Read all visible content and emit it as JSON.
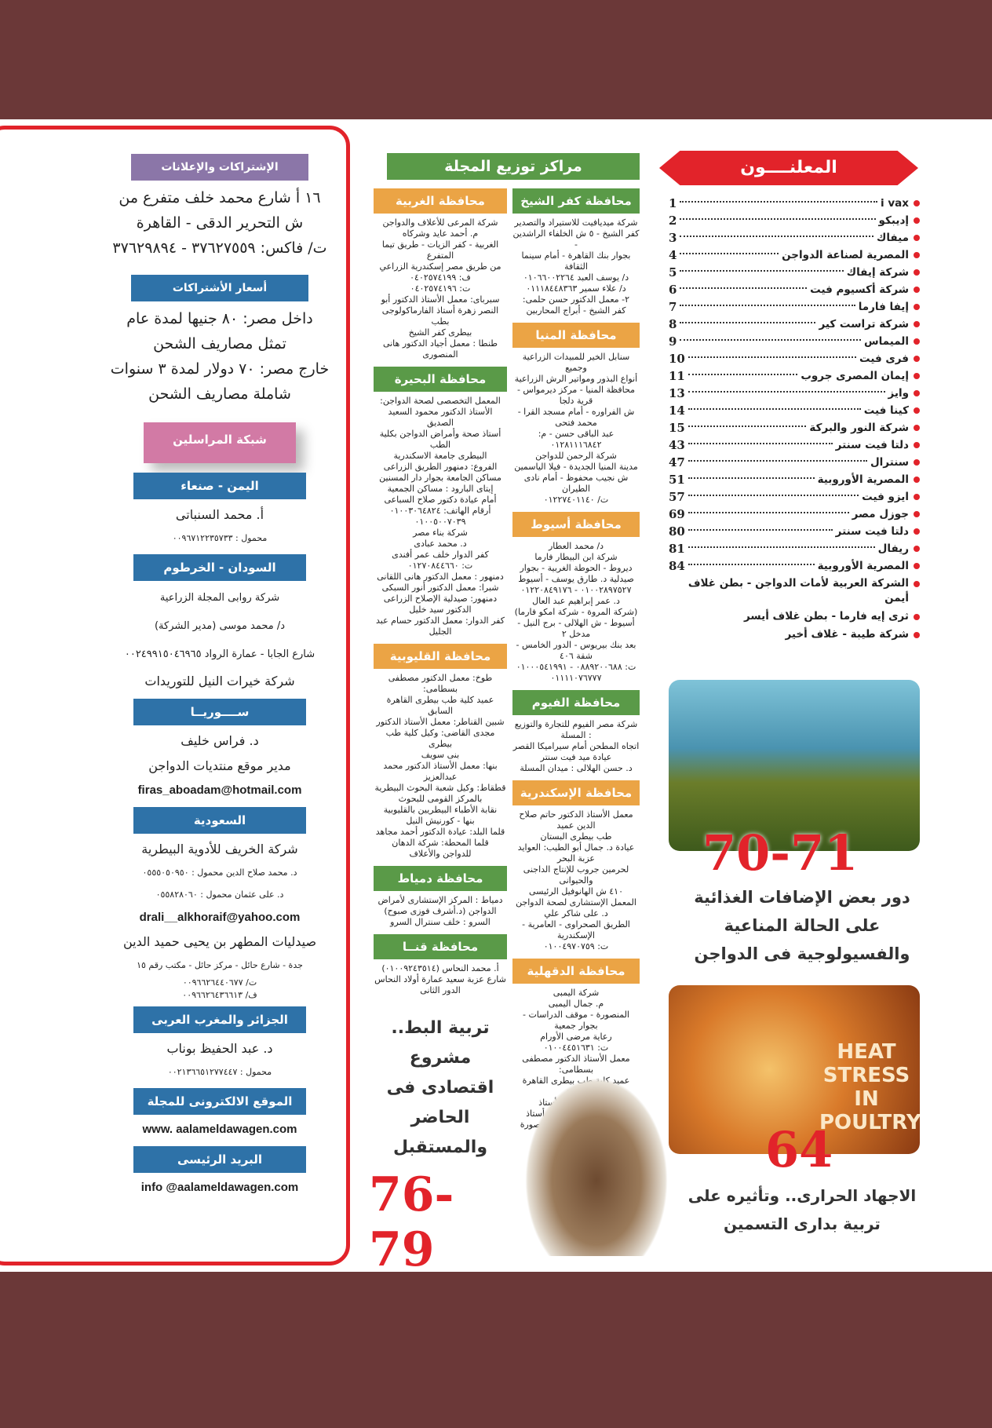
{
  "advertisers": {
    "title": "المعلنــــون",
    "items": [
      {
        "name": "i vax",
        "page": "1"
      },
      {
        "name": "إديبكو",
        "page": "2"
      },
      {
        "name": "ميفاك",
        "page": "3"
      },
      {
        "name": "المصرية لصناعة الدواجن",
        "page": "4"
      },
      {
        "name": "شركة إيفاك",
        "page": "5"
      },
      {
        "name": "شركة أكسيوم فيت",
        "page": "6"
      },
      {
        "name": "إيفا فارما",
        "page": "7"
      },
      {
        "name": "شركة تراست كير",
        "page": "8"
      },
      {
        "name": "الميماس",
        "page": "9"
      },
      {
        "name": "فرى فيت",
        "page": "10"
      },
      {
        "name": "إيمان المصرى جروب",
        "page": "11"
      },
      {
        "name": "وايز",
        "page": "13"
      },
      {
        "name": "كينا فيت",
        "page": "14"
      },
      {
        "name": "شركة النور والبركة",
        "page": "15"
      },
      {
        "name": "دلتا فيت سنتر",
        "page": "43"
      },
      {
        "name": "سنترال",
        "page": "47"
      },
      {
        "name": "المصرية الأوروبية",
        "page": "51"
      },
      {
        "name": "ايزو فيت",
        "page": "57"
      },
      {
        "name": "جوزل مصر",
        "page": "69"
      },
      {
        "name": "دلتا فيت سنتر",
        "page": "80"
      },
      {
        "name": "ريفال",
        "page": "81"
      },
      {
        "name": "المصرية الأوروبية",
        "page": "84"
      }
    ],
    "covers": [
      "الشركة العربية لأمات الدواجن - بطن غلاف أيمن",
      "ثرى إيه فارما - بطن غلاف أيسر",
      "شركة طيبة - غلاف أخير"
    ]
  },
  "features": [
    {
      "pages": "70-71",
      "title": "دور بعض الإضافات الغذائية على الحالة المناعية والفسيولوجية فى الدواجن"
    },
    {
      "pages": "64",
      "title": "الاجهاد الحرارى.. وتأثيره على تربية بدارى التسمين",
      "image_text": "HEAT STRESS IN POULTRY"
    },
    {
      "pages": "76-79",
      "title": "تربية البط.. مشروع اقتصادى فى الحاضر والمستقبل"
    }
  ],
  "distribution": {
    "title": "مراكز توزيع المجلة",
    "col_right": [
      {
        "name": "محافظة كفر الشيخ",
        "color": "green",
        "lines": [
          "شركة ميديافيت للاستيراد والتصدير",
          "كفر الشيخ - ٥ ش الخلفاء الراشدين -",
          "بجوار بنك القاهرة - أمام سينما الثقافة",
          "د/ يوسف العبد ٠١٠٦٦٠٠٢٢٦٤",
          "د/ علاء سمير ٠١١١٨٤٤٨٣٦٣",
          "٢- معمل الدكتور حسن حلمى:",
          "كفر الشيخ - أبراج المحاربين"
        ]
      },
      {
        "name": "محافظة المنيا",
        "color": "orange",
        "lines": [
          "سنابل الخير للمبيدات الزراعية وجميع",
          "أنواع البذور ومواتير الرش الزراعية",
          "محافظة المنيا - مركز ديرمواس - قرية دلجا",
          "ش الفراوره - أمام مسجد القرا - محمد فتحى",
          "عبد الباقى حسن - م: ٠١٢٨١١١٦٨٤٢",
          "شركة الرحمن للدواجن",
          "مدينة المنيا الجديدة - فيلا الياسمين",
          "ش نجيب محفوظ - أمام نادى الطيران",
          "ت/ ٠١٢٢٧٤٠١١٤٠"
        ]
      },
      {
        "name": "محافظة أسيوط",
        "color": "orange",
        "lines": [
          "د/ محمد العطار",
          "شركة ابن البيطار فارما",
          "ديروط - الحوطة الغربية - بجوار",
          "صيدلية د. طارق يوسف - أسيوط",
          "٠١٠٠٢٨٩٧٥٢٧ - ٠١٢٢٠٨٤٩١٧٦",
          "د. عمر إبراهيم عبد العال",
          "(شركة المروة - شركة امكو فارما)",
          "أسيوط - ش الهلالى - برج النيل - مدخل ٢",
          "بعد بنك بيريوس - الدور الخامس - شقة ٤٠٦",
          "ت: ٠٨٨٩٢٠٠٦٨٨ - ٠١٠٠٠٥٤١٩٩١",
          "٠١١١١٠٧٦٧٧٧"
        ]
      },
      {
        "name": "محافظة الفيوم",
        "color": "green",
        "lines": [
          "شركة مصر الفيوم للتجارة والتوزيع : المسلة",
          "اتجاه المطحن أمام سيراميكا القصر",
          "عيادة ميد فيت سنتر",
          "د. حسن الهلالى : ميدان المسلة"
        ]
      },
      {
        "name": "محافظة الإسكندرية",
        "color": "orange",
        "lines": [
          "معمل الأستاذ الدكتور حاتم صلاح الدين عميد",
          "طب بيطرى البستان",
          "عيادة د. جمال أبو الطيب: العوايد عزبة البحر",
          "لحرمين جروب للإنتاج الداجنى والحيوانى",
          "٤١٠ ش الهانوفيل الرئيسى",
          "المعمل الإستشارى لصحة الدواجن",
          "د. على شاكر علي",
          "الطريق الصحراوى - العامرية - الإسكندرية",
          "ت: ٠١٠٠٤٩٧٠٧٥٩"
        ]
      },
      {
        "name": "محافظة الدقهلية",
        "color": "orange",
        "lines": [
          "شركة اليمبى",
          "م. جمال اليمبى",
          "المنصورة - موقف الدراسات - بجوار جمعية",
          "رعاية مرضى الأورام",
          "ت: ٠١٠٠٤٤٥١٦٣١",
          "معمل الأستاذ الدكتور مصطفى بسطامى:",
          "عميد كلية طب بيطرى القاهرة السابق",
          "توريل : معمل الأستاذ",
          "الدكتور محمد يوسف : أستاذ",
          "أمراض الباطنة جامعة المنصورة"
        ]
      }
    ],
    "col_left": [
      {
        "name": "محافظة الغربية",
        "color": "orange",
        "lines": [
          "شركة المرعى للأعلاف والدواجن",
          "م. أحمد عايد وشركاه",
          "الغربية - كفر الزيات - طريق تيما المتفرع",
          "من طريق مصر إسكندرية الزراعي",
          "ف: ٠٤٠٢٥٧٤١٩٩",
          "ت: ٠٤٠٢٥٧٤١٩٦",
          "سبرباى: معمل الأستاذ الدكتور أبو",
          "النصر زهرة أستاذ الفارماكولوجى بطب",
          "بيطرى كفر الشيخ",
          "طنطا : معمل أجياد الدكتور هانى المنصورى"
        ]
      },
      {
        "name": "محافظة البحيرة",
        "color": "green",
        "lines": [
          "المعمل التخصصى لصحة الدواجن:",
          "الأستاذ الدكتور محمود السعيد الصديق",
          "أستاذ صحة وأمراض الدواجن بكلية الطب",
          "البيطرى جامعة الاسكندرية",
          "الفروع: دمنهور الطريق الزراعى",
          "مساكن الجامعة بجوار دار المسنين",
          "إيتاى البارود : مساكن الجمعية",
          "أمام عيادة دكتور صلاح السباعى",
          "أرقام الهاتف: ٠١٠٠٣٠٦٤٨٢٤",
          "٠١٠٠٥٠٠٧٠٣٩",
          "شركة بناء مصر",
          "د. محمد عبادى",
          "كفر الدوار خلف عمر أفندى",
          "ت: ٠١٢٧٠٨٤٤٦٦٠",
          "دمنهور : معمل الدكتور هانى اللقانى",
          "شبرا: معمل الدكتور أنور السبكى",
          "دمنهور: صيدلية الإصلاح الزراعى",
          "الدكتور سيد خليل",
          "كفر الدوار: معمل الدكتور حسام عبد الجليل"
        ]
      },
      {
        "name": "محافظة القليوبية",
        "color": "orange",
        "lines": [
          "طوخ: معمل الدكتور مصطفى بسطامى:",
          "عميد كلية طب بيطرى القاهرة السابق",
          "شبين القناطر: معمل الأستاذ الدكتور",
          "مجدى القاضى: وكيل كلية طب بيطرى",
          "بنى سويف",
          "بنها: معمل الأستاذ الدكتور محمد عبدالعزيز",
          "قطقاط: وكيل شعبة البحوث البيطرية",
          "بالمركز القومى للبحوث",
          "نقابة الأطباء البيطريين بالقليوبية",
          "بنها - كورنيش النيل",
          "قلما البلد: عيادة الدكتور أحمد مجاهد",
          "قلما المحطة: شركة الدهان",
          "للدواجن والأعلاف"
        ]
      },
      {
        "name": "محافظة دمياط",
        "color": "green",
        "lines": [
          "دمياط : المركز الإستشارى لأمراض",
          "الدواجن (د.أشرف فوزى صبوح)",
          "السرو : خلف سنترال السرو"
        ]
      },
      {
        "name": "محافظة قنــا",
        "color": "green",
        "lines": [
          "أ. محمد النحاس (٠١٠٠٩٢٤٣٥١٤)",
          "شارع عزبة سعيد عمارة أولاد النحاس الدور الثانى"
        ]
      }
    ]
  },
  "contact": {
    "ads_title": "الإشتراكات والإعلانات",
    "address": [
      "١٦ أ شارع محمد خلف متفرع من",
      "ش التحرير الدقى - القاهرة",
      "ت/ فاكس: ٣٧٦٢٧٥٥٩ - ٣٧٦٢٩٨٩٤"
    ],
    "prices_title": "أسعار الأشتراكات",
    "prices": [
      "داخل مصر: ٨٠ جنيها لمدة عام",
      "تمثل مصاريف الشحن",
      "خارج مصر: ٧٠ دولار لمدة ٣ سنوات",
      "شاملة مصاريف الشحن"
    ],
    "network_title": "شبكة المراسلين",
    "regions": [
      {
        "name": "اليمن - صنعاء",
        "lines": [
          {
            "t": "أ. محمد السنباتى",
            "s": "l"
          },
          {
            "t": "محمول : ٠٠٩٦٧١٢٢٣٥٧٣٣",
            "s": "s"
          }
        ]
      },
      {
        "name": "السودان - الخرطوم",
        "lines": [
          {
            "t": "شركة روابى المجلة الزراعية",
            "s": "m"
          },
          {
            "t": "د/ محمد موسى (مدير الشركة)",
            "s": "m"
          },
          {
            "t": "شارع الجابا - عمارة الرواد ٠٠٢٤٩٩١٥٠٤٦٩٦٥",
            "s": "m"
          },
          {
            "t": "شركة خيرات النيل للتوريدات",
            "s": "l"
          }
        ]
      },
      {
        "name": "ســــوريــا",
        "lines": [
          {
            "t": "د. فراس خليف",
            "s": "l"
          },
          {
            "t": "مدير موقع منتديات الدواجن",
            "s": "l"
          },
          {
            "t": "firas_aboadam@hotmail.com",
            "s": "e"
          }
        ]
      },
      {
        "name": "السعودية",
        "lines": [
          {
            "t": "شركة الخريف للأدوية البيطرية",
            "s": "l"
          },
          {
            "t": "د. محمد صلاح الدين   محمول : ٠٥٥٥٠٥٠٩٥٠",
            "s": "s"
          },
          {
            "t": "د. على عثمان   محمول : ٠٥٥٨٢٨٠٦٠",
            "s": "s"
          },
          {
            "t": "drali__alkhoraif@yahoo.com",
            "s": "e"
          },
          {
            "t": "صيدليات المطهر بن يحيى حميد الدين",
            "s": "l"
          },
          {
            "t": "جدة - شارع حائل - مركز حائل - مكتب رقم ١٥",
            "s": "s"
          },
          {
            "t": "ت/ ٠٠٩٦٦٢٦٤٤٠٦٧٧",
            "s": "x"
          },
          {
            "t": "ف/ ٠٠٩٦٦٢٦٤٣٦٦١٣",
            "s": "x"
          }
        ]
      },
      {
        "name": "الجزائر والمغرب العربى",
        "lines": [
          {
            "t": "د. عبد الحفيظ بوناب",
            "s": "l"
          },
          {
            "t": "محمول : ٠٠٢١٣٦٦٥١٢٧٧٤٤٧",
            "s": "s"
          }
        ]
      },
      {
        "name": "الموقع الالكترونى للمجلة",
        "lines": [
          {
            "t": "www. aalameldawagen.com",
            "s": "e"
          }
        ]
      },
      {
        "name": "البريد الرئيسى",
        "lines": [
          {
            "t": "info @aalameldawagen.com",
            "s": "e"
          }
        ]
      }
    ]
  },
  "colors": {
    "band": "#6b3838",
    "red": "#e2232a",
    "green": "#5a9a48",
    "orange": "#eba445",
    "blue": "#2e72a8",
    "purple": "#8b76a8",
    "pink": "#d27aa5"
  }
}
